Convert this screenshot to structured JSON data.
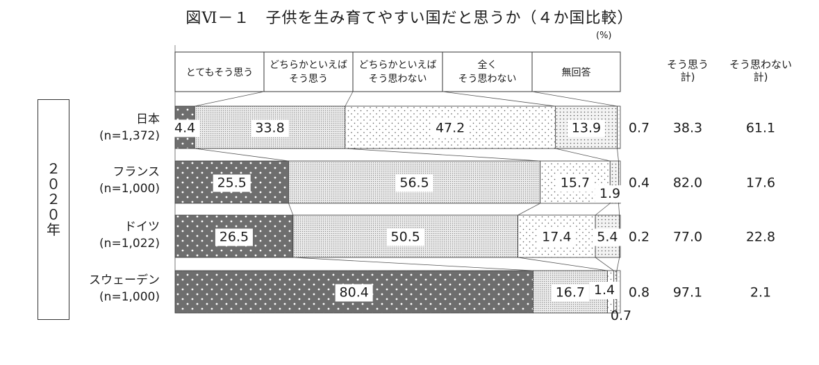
{
  "title": "図Ⅵ－１　子供を生み育てやすい国だと思うか（４か国比較）",
  "unit": "(%)",
  "year_label": "２０２０年",
  "summary_headers": [
    "そう思う\n計)",
    "そう思わない\n計)"
  ],
  "chart_data": {
    "type": "bar",
    "stacked": true,
    "orientation": "horizontal",
    "categories": [
      {
        "name": "日本",
        "n": "(n=1,372)"
      },
      {
        "name": "フランス",
        "n": "(n=1,000)"
      },
      {
        "name": "ドイツ",
        "n": "(n=1,022)"
      },
      {
        "name": "スウェーデン",
        "n": "(n=1,000)"
      }
    ],
    "series": [
      {
        "name": "とてもそう思う",
        "values": [
          4.4,
          25.5,
          26.5,
          80.4
        ],
        "color": "#6e6e6e"
      },
      {
        "name": "どちらかといえば\nそう思う",
        "values": [
          33.8,
          56.5,
          50.5,
          16.7
        ],
        "color": "#d2d2d2"
      },
      {
        "name": "どちらかといえば\nそう思わない",
        "values": [
          47.2,
          15.7,
          17.4,
          1.4
        ],
        "color": "#f4f4f4"
      },
      {
        "name": "全く\nそう思わない",
        "values": [
          13.9,
          1.9,
          5.4,
          0.7
        ],
        "color": "#e8e8e8"
      },
      {
        "name": "無回答",
        "values": [
          0.7,
          0.4,
          0.2,
          0.8
        ],
        "color": "#ffffff"
      }
    ],
    "summary": {
      "agree_total": [
        "38.3",
        "82.0",
        "77.0",
        "97.1"
      ],
      "disagree_total": [
        "61.1",
        "17.6",
        "22.8",
        "2.1"
      ]
    },
    "xlim": [
      0,
      100
    ],
    "legend": "top"
  }
}
